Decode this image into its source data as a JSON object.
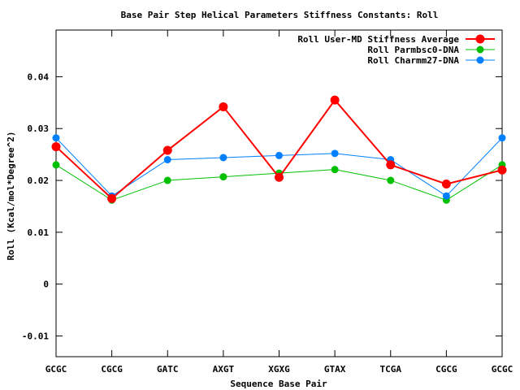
{
  "chart_data": {
    "type": "line",
    "title": "Base Pair Step Helical Parameters Stiffness Constants: Roll",
    "xlabel": "Sequence Base Pair",
    "ylabel": "Roll (Kcal/mol*Degree^2)",
    "categories": [
      "GCGC",
      "CGCG",
      "GATC",
      "AXGT",
      "XGXG",
      "GTAX",
      "TCGA",
      "CGCG",
      "GCGC"
    ],
    "ylim": [
      -0.014,
      0.049
    ],
    "yticks": [
      -0.01,
      0,
      0.01,
      0.02,
      0.03,
      0.04
    ],
    "ytick_labels": [
      "-0.01",
      "0",
      "0.01",
      "0.02",
      "0.03",
      "0.04"
    ],
    "grid": false,
    "legend_position": "top-right",
    "series": [
      {
        "name": "Roll User-MD Stiffness Average",
        "color": "#ff0000",
        "values": [
          0.0265,
          0.0165,
          0.0258,
          0.0342,
          0.0206,
          0.0355,
          0.023,
          0.0193,
          0.022
        ]
      },
      {
        "name": "Roll Parmbsc0-DNA",
        "color": "#00c000",
        "values": [
          0.023,
          0.0162,
          0.02,
          0.0207,
          0.0214,
          0.0221,
          0.02,
          0.0162,
          0.023
        ]
      },
      {
        "name": "Roll Charmm27-DNA",
        "color": "#0080ff",
        "values": [
          0.0282,
          0.017,
          0.024,
          0.0244,
          0.0248,
          0.0252,
          0.024,
          0.017,
          0.0282
        ]
      }
    ]
  }
}
